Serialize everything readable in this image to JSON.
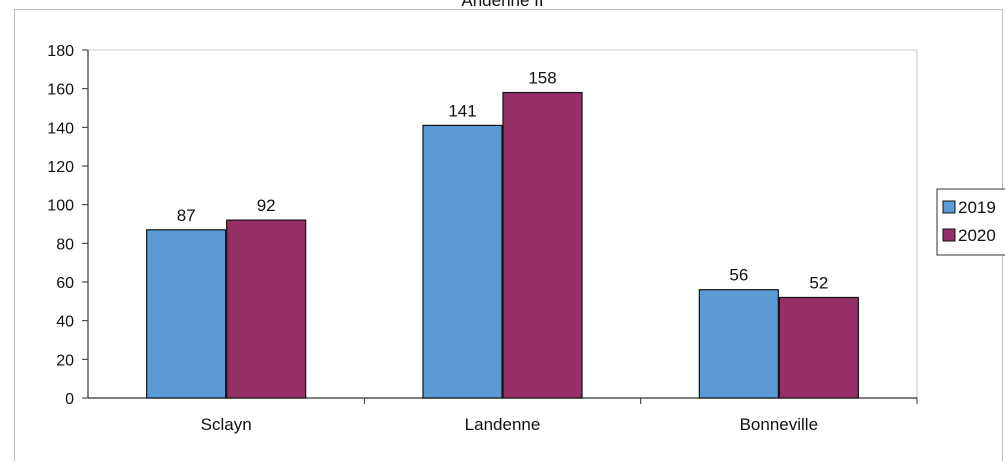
{
  "chart_data": {
    "type": "bar",
    "title": "Andenne II",
    "xlabel": "",
    "ylabel": "",
    "categories": [
      "Sclayn",
      "Landenne",
      "Bonneville"
    ],
    "series": [
      {
        "name": "2019",
        "values": [
          87,
          141,
          56
        ],
        "color": "#5b9bd5"
      },
      {
        "name": "2020",
        "values": [
          92,
          158,
          52
        ],
        "color": "#953166"
      }
    ],
    "ylim": [
      0,
      180
    ],
    "yticks": [
      0,
      20,
      40,
      60,
      80,
      100,
      120,
      140,
      160,
      180
    ],
    "grid": false,
    "legend": "right"
  }
}
